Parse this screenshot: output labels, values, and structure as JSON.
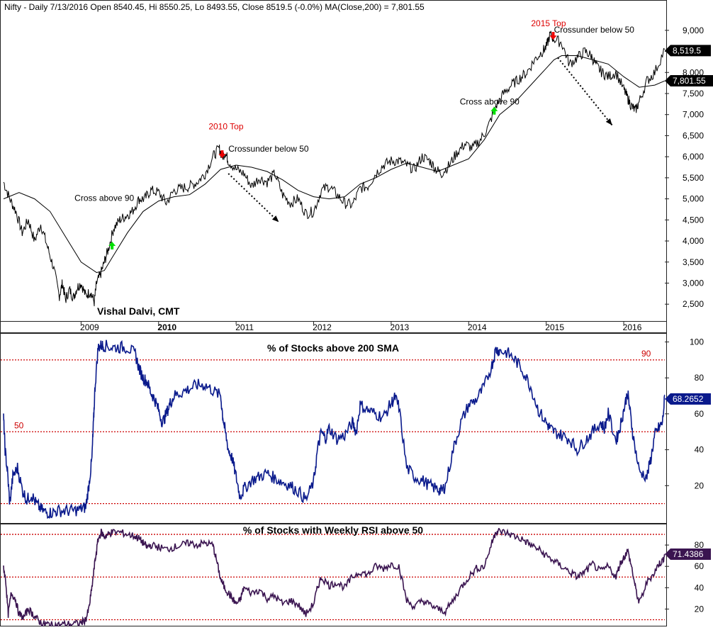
{
  "header": {
    "text": "Nifty - Daily 7/13/2016 Open 8540.45, Hi 8550.25, Lo 8493.55, Close 8519.5 (-0.0%) MA(Close,200) = 7,801.55"
  },
  "author": "Vishal Dalvi, CMT",
  "colors": {
    "background": "#ffffff",
    "border": "#222222",
    "price_line": "#000000",
    "ma_line": "#000000",
    "sma_breadth_line": "#0a1a8c",
    "rsi_breadth_line": "#3a1450",
    "level_line": "#cc0000",
    "top_label": "#dd0000",
    "buy_arrow": "#00e000",
    "sell_arrow": "#ee0000",
    "price_tag_bg": "#000000",
    "sma_tag_bg": "#0a1a8c",
    "rsi_tag_bg": "#3a1450",
    "tag_text": "#ffffff"
  },
  "chart_data": [
    {
      "type": "line",
      "title": "",
      "x_ticks": [
        "2009",
        "2010",
        "2011",
        "2012",
        "2013",
        "2014",
        "2015",
        "2016"
      ],
      "xlim": [
        2008.0,
        2016.53
      ],
      "ylim": [
        2100,
        9350
      ],
      "y_ticks": [
        "2,500",
        "3,000",
        "3,500",
        "4,000",
        "4,500",
        "5,000",
        "5,500",
        "6,000",
        "6,500",
        "7,000",
        "7,500",
        "8,000",
        "8,500",
        "9,000"
      ],
      "series": [
        {
          "role": "price",
          "x": [
            2008.0,
            2008.08,
            2008.16,
            2008.24,
            2008.32,
            2008.4,
            2008.48,
            2008.56,
            2008.64,
            2008.72,
            2008.76,
            2008.8,
            2008.85,
            2008.9,
            2008.95,
            2009.0,
            2009.06,
            2009.12,
            2009.17,
            2009.2,
            2009.25,
            2009.3,
            2009.35,
            2009.42,
            2009.5,
            2009.58,
            2009.66,
            2009.75,
            2009.82,
            2009.9,
            2010.0,
            2010.1,
            2010.2,
            2010.3,
            2010.4,
            2010.5,
            2010.6,
            2010.7,
            2010.78,
            2010.82,
            2010.86,
            2010.9,
            2011.0,
            2011.1,
            2011.2,
            2011.3,
            2011.4,
            2011.5,
            2011.6,
            2011.7,
            2011.8,
            2011.9,
            2012.0,
            2012.1,
            2012.2,
            2012.3,
            2012.4,
            2012.5,
            2012.6,
            2012.7,
            2012.8,
            2012.9,
            2013.0,
            2013.1,
            2013.2,
            2013.3,
            2013.4,
            2013.5,
            2013.58,
            2013.65,
            2013.75,
            2013.85,
            2013.95,
            2014.05,
            2014.15,
            2014.25,
            2014.35,
            2014.45,
            2014.55,
            2014.65,
            2014.75,
            2014.85,
            2014.95,
            2015.0,
            2015.05,
            2015.1,
            2015.2,
            2015.3,
            2015.4,
            2015.5,
            2015.58,
            2015.65,
            2015.72,
            2015.8,
            2015.9,
            2016.0,
            2016.05,
            2016.1,
            2016.15,
            2016.2,
            2016.3,
            2016.4,
            2016.53
          ],
          "y": [
            5400,
            5000,
            4700,
            4200,
            4500,
            4000,
            4400,
            3900,
            3400,
            2700,
            3000,
            2600,
            2850,
            2650,
            2900,
            3000,
            2700,
            2800,
            2550,
            3000,
            3200,
            3500,
            3800,
            4300,
            4500,
            4600,
            4700,
            5000,
            5000,
            5200,
            5150,
            4900,
            5200,
            5250,
            5300,
            5400,
            5600,
            6000,
            6200,
            6000,
            6100,
            5900,
            5700,
            5600,
            5300,
            5500,
            5400,
            5600,
            5100,
            4900,
            5000,
            4650,
            4700,
            5200,
            5300,
            5100,
            4900,
            4850,
            5250,
            5300,
            5600,
            5800,
            5900,
            5900,
            5800,
            5700,
            6000,
            5900,
            5700,
            5600,
            5800,
            6100,
            6300,
            6200,
            6400,
            6700,
            7200,
            7500,
            7700,
            7850,
            8000,
            8300,
            8500,
            8600,
            8900,
            8800,
            8700,
            8200,
            8350,
            8500,
            8400,
            8150,
            8000,
            7900,
            8000,
            7600,
            7400,
            7200,
            7100,
            7300,
            7800,
            8000,
            8550
          ]
        },
        {
          "role": "moving average",
          "name": "MA(Close,200)",
          "x": [
            2008.0,
            2008.2,
            2008.4,
            2008.6,
            2008.8,
            2009.0,
            2009.2,
            2009.3,
            2009.4,
            2009.6,
            2009.8,
            2010.0,
            2010.2,
            2010.4,
            2010.6,
            2010.8,
            2011.0,
            2011.2,
            2011.4,
            2011.6,
            2011.8,
            2012.0,
            2012.2,
            2012.4,
            2012.6,
            2012.8,
            2013.0,
            2013.2,
            2013.4,
            2013.6,
            2013.8,
            2014.0,
            2014.2,
            2014.4,
            2014.6,
            2014.8,
            2015.0,
            2015.1,
            2015.2,
            2015.4,
            2015.6,
            2015.8,
            2016.0,
            2016.2,
            2016.4,
            2016.53
          ],
          "y": [
            5000,
            5150,
            5000,
            4700,
            4100,
            3500,
            3250,
            3300,
            3600,
            4200,
            4700,
            4950,
            5050,
            5100,
            5350,
            5700,
            5800,
            5750,
            5650,
            5450,
            5200,
            5050,
            5000,
            5050,
            5350,
            5500,
            5700,
            5850,
            5750,
            5650,
            5800,
            5950,
            6400,
            7000,
            7300,
            7700,
            8100,
            8300,
            8400,
            8400,
            8300,
            8200,
            7900,
            7650,
            7700,
            7800
          ]
        }
      ],
      "annotations": [
        {
          "text": "Cross above 90",
          "x": 2009.3,
          "y": 4950,
          "marker": "buy"
        },
        {
          "text": "2010 Top",
          "x": 2010.87,
          "y": 6650,
          "marker": "top"
        },
        {
          "text": "Crossunder below 50",
          "x": 2010.9,
          "y": 6120,
          "marker": "sell"
        },
        {
          "text": "Cross above 90",
          "x": 2014.27,
          "y": 7240,
          "marker": "buy"
        },
        {
          "text": "2015 Top",
          "x": 2015.03,
          "y": 9100,
          "marker": "top"
        },
        {
          "text": "Crossunder below 50",
          "x": 2015.1,
          "y": 8950,
          "marker": "sell"
        }
      ],
      "trend_arrows": [
        {
          "from": [
            2010.9,
            5600
          ],
          "to": [
            2011.55,
            4450
          ]
        },
        {
          "from": [
            2015.15,
            8350
          ],
          "to": [
            2015.85,
            6750
          ]
        }
      ],
      "last_values": {
        "price": "8,519.5",
        "ma": "7,801.55"
      }
    },
    {
      "type": "line",
      "title": "% of Stocks above 200 SMA",
      "xlim": [
        2008.0,
        2016.53
      ],
      "ylim": [
        0,
        101
      ],
      "y_ticks": [
        "20",
        "40",
        "60",
        "80",
        "100"
      ],
      "levels": [
        {
          "value": 90,
          "label": "90"
        },
        {
          "value": 50,
          "label": "50"
        },
        {
          "value": 10,
          "label": ""
        }
      ],
      "series": [
        {
          "x": [
            2008.0,
            2008.02,
            2008.05,
            2008.08,
            2008.12,
            2008.18,
            2008.24,
            2008.3,
            2008.36,
            2008.42,
            2008.48,
            2008.55,
            2008.62,
            2008.7,
            2008.8,
            2008.9,
            2009.0,
            2009.06,
            2009.1,
            2009.14,
            2009.16,
            2009.18,
            2009.22,
            2009.26,
            2009.3,
            2009.4,
            2009.5,
            2009.6,
            2009.7,
            2009.75,
            2009.8,
            2009.85,
            2009.9,
            2009.95,
            2010.0,
            2010.05,
            2010.1,
            2010.15,
            2010.2,
            2010.3,
            2010.4,
            2010.5,
            2010.6,
            2010.7,
            2010.8,
            2010.83,
            2010.86,
            2010.9,
            2010.95,
            2011.0,
            2011.05,
            2011.1,
            2011.2,
            2011.3,
            2011.4,
            2011.5,
            2011.6,
            2011.7,
            2011.8,
            2011.9,
            2012.0,
            2012.05,
            2012.1,
            2012.15,
            2012.2,
            2012.3,
            2012.4,
            2012.5,
            2012.55,
            2012.6,
            2012.7,
            2012.8,
            2012.9,
            2013.0,
            2013.05,
            2013.1,
            2013.2,
            2013.3,
            2013.4,
            2013.5,
            2013.6,
            2013.65,
            2013.7,
            2013.8,
            2013.9,
            2014.0,
            2014.1,
            2014.2,
            2014.3,
            2014.35,
            2014.4,
            2014.5,
            2014.6,
            2014.7,
            2014.8,
            2014.9,
            2015.0,
            2015.05,
            2015.1,
            2015.2,
            2015.3,
            2015.4,
            2015.5,
            2015.6,
            2015.7,
            2015.75,
            2015.8,
            2015.9,
            2015.95,
            2016.0,
            2016.05,
            2016.08,
            2016.12,
            2016.2,
            2016.3,
            2016.35,
            2016.4,
            2016.45,
            2016.5,
            2016.53
          ],
          "y": [
            58,
            40,
            28,
            10,
            25,
            30,
            18,
            12,
            15,
            10,
            7,
            5,
            5,
            6,
            6,
            6,
            7,
            8,
            20,
            35,
            55,
            75,
            97,
            98,
            98,
            97,
            97,
            97,
            93,
            85,
            80,
            78,
            72,
            68,
            62,
            55,
            60,
            66,
            70,
            72,
            74,
            76,
            76,
            73,
            70,
            58,
            50,
            40,
            35,
            25,
            14,
            18,
            23,
            25,
            27,
            24,
            22,
            20,
            17,
            12,
            22,
            40,
            50,
            46,
            52,
            46,
            48,
            55,
            50,
            65,
            62,
            60,
            58,
            66,
            69,
            64,
            30,
            25,
            23,
            20,
            18,
            17,
            20,
            40,
            55,
            65,
            68,
            75,
            87,
            96,
            95,
            94,
            90,
            84,
            75,
            62,
            55,
            52,
            50,
            48,
            46,
            40,
            45,
            50,
            55,
            52,
            60,
            45,
            52,
            62,
            72,
            62,
            48,
            28,
            25,
            35,
            48,
            52,
            55,
            70
          ]
        }
      ],
      "last_value": "68.2652"
    },
    {
      "type": "line",
      "title": "% of Stocks with Weekly RSI above 50",
      "xlim": [
        2008.0,
        2016.53
      ],
      "ylim": [
        5,
        98
      ],
      "y_ticks": [
        "20",
        "40",
        "60",
        "80"
      ],
      "levels": [
        {
          "value": 90,
          "label": ""
        },
        {
          "value": 50,
          "label": ""
        },
        {
          "value": 10,
          "label": ""
        }
      ],
      "series": [
        {
          "x": [
            2008.0,
            2008.03,
            2008.06,
            2008.1,
            2008.15,
            2008.2,
            2008.26,
            2008.32,
            2008.38,
            2008.44,
            2008.5,
            2008.56,
            2008.62,
            2008.7,
            2008.8,
            2008.9,
            2009.0,
            2009.06,
            2009.1,
            2009.14,
            2009.18,
            2009.22,
            2009.26,
            2009.3,
            2009.35,
            2009.4,
            2009.5,
            2009.6,
            2009.7,
            2009.75,
            2009.8,
            2009.85,
            2009.9,
            2010.0,
            2010.1,
            2010.2,
            2010.3,
            2010.4,
            2010.5,
            2010.6,
            2010.7,
            2010.75,
            2010.8,
            2010.85,
            2010.9,
            2010.95,
            2011.0,
            2011.05,
            2011.1,
            2011.2,
            2011.3,
            2011.4,
            2011.5,
            2011.6,
            2011.7,
            2011.8,
            2011.9,
            2012.0,
            2012.05,
            2012.1,
            2012.2,
            2012.3,
            2012.4,
            2012.5,
            2012.6,
            2012.7,
            2012.8,
            2012.9,
            2013.0,
            2013.1,
            2013.2,
            2013.3,
            2013.4,
            2013.5,
            2013.6,
            2013.7,
            2013.8,
            2013.9,
            2014.0,
            2014.1,
            2014.2,
            2014.3,
            2014.35,
            2014.4,
            2014.5,
            2014.6,
            2014.7,
            2014.8,
            2014.9,
            2015.0,
            2015.1,
            2015.2,
            2015.3,
            2015.4,
            2015.5,
            2015.6,
            2015.7,
            2015.8,
            2015.9,
            2015.95,
            2016.0,
            2016.05,
            2016.1,
            2016.15,
            2016.2,
            2016.3,
            2016.4,
            2016.45,
            2016.5,
            2016.53
          ],
          "y": [
            60,
            45,
            15,
            35,
            30,
            15,
            12,
            20,
            15,
            10,
            6,
            6,
            5,
            5,
            6,
            6,
            7,
            10,
            20,
            40,
            65,
            85,
            92,
            88,
            90,
            92,
            92,
            90,
            88,
            86,
            82,
            78,
            80,
            78,
            76,
            78,
            80,
            82,
            80,
            82,
            80,
            65,
            48,
            40,
            35,
            30,
            25,
            28,
            40,
            35,
            38,
            30,
            32,
            25,
            28,
            24,
            15,
            25,
            40,
            50,
            42,
            45,
            40,
            50,
            55,
            52,
            60,
            58,
            62,
            60,
            28,
            22,
            28,
            24,
            20,
            18,
            28,
            40,
            50,
            58,
            60,
            82,
            93,
            93,
            91,
            88,
            85,
            80,
            76,
            70,
            65,
            60,
            55,
            50,
            55,
            62,
            55,
            60,
            50,
            62,
            68,
            75,
            60,
            40,
            25,
            45,
            55,
            62,
            65,
            71
          ]
        }
      ],
      "last_value": "71.4386"
    }
  ]
}
